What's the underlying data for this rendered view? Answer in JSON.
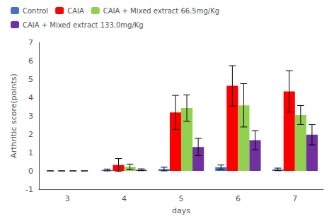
{
  "chart_data": {
    "type": "bar",
    "categories": [
      "3",
      "4",
      "5",
      "6",
      "7"
    ],
    "xlabel": "days",
    "ylabel": "Arthritic score(points)",
    "series": [
      {
        "name": "Control",
        "color": "#4472c4",
        "values": [
          0.0,
          0.05,
          0.1,
          0.2,
          0.08
        ],
        "errors": [
          0.0,
          0.05,
          0.1,
          0.12,
          0.07
        ]
      },
      {
        "name": "CAIA",
        "color": "#ff0000",
        "values": [
          0.0,
          0.32,
          3.18,
          4.63,
          4.33
        ],
        "errors": [
          0.0,
          0.35,
          0.93,
          1.1,
          1.13
        ]
      },
      {
        "name": "CAIA + Mixed extract 66.5mg/Kg",
        "color": "#92d050",
        "values": [
          0.0,
          0.22,
          3.42,
          3.57,
          3.04
        ],
        "errors": [
          0.0,
          0.15,
          0.72,
          1.18,
          0.52
        ]
      },
      {
        "name": "CAIA + Mixed extract 133.0mg/Kg",
        "color": "#7030a0",
        "values": [
          0.0,
          0.06,
          1.3,
          1.67,
          1.97
        ],
        "errors": [
          0.0,
          0.05,
          0.47,
          0.52,
          0.55
        ]
      }
    ],
    "ylim": [
      -1,
      7
    ],
    "yticks": [
      -1,
      0,
      1,
      2,
      3,
      4,
      5,
      6,
      7
    ],
    "grid": false,
    "legend": "upper left"
  }
}
